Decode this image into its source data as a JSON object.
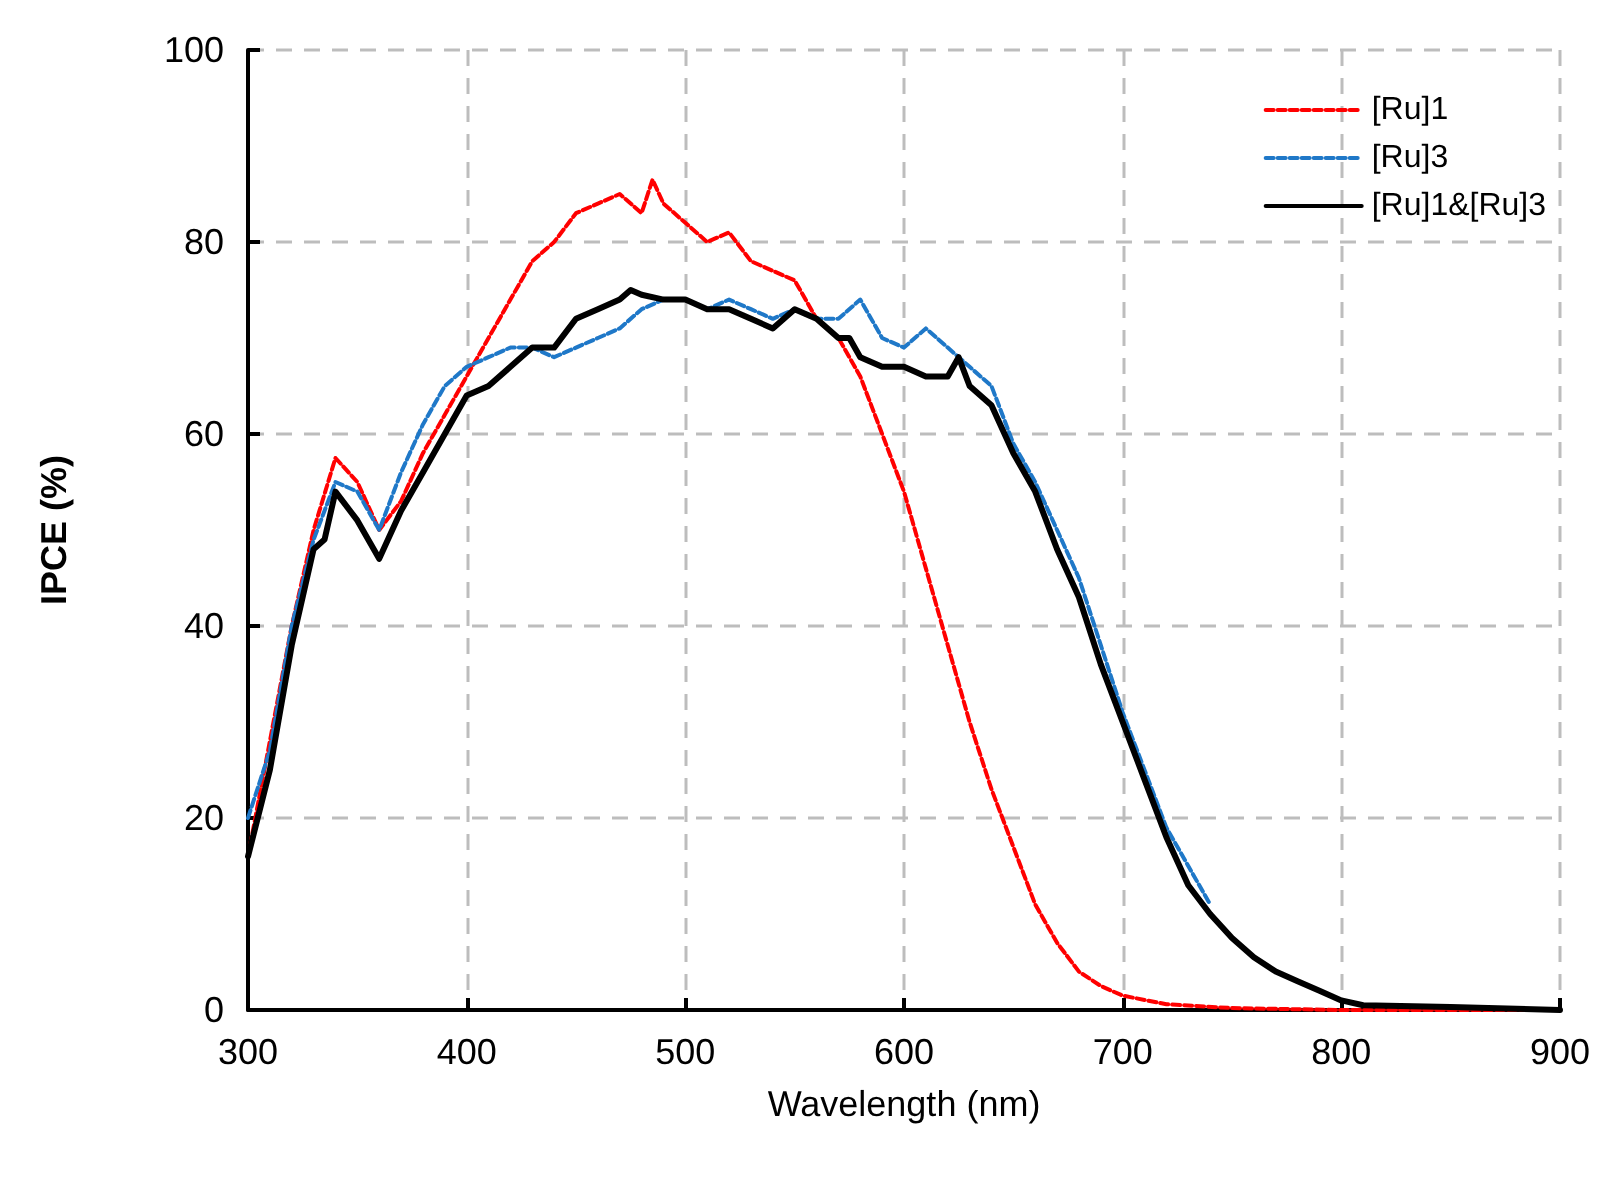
{
  "chart_data": {
    "type": "line",
    "xlabel": "Wavelength (nm)",
    "ylabel": "IPCE (%)",
    "xlim": [
      300,
      900
    ],
    "xticks": [
      300,
      400,
      500,
      600,
      700,
      800,
      900
    ],
    "ylim": [
      0,
      100
    ],
    "yticks": [
      0,
      20,
      40,
      60,
      80,
      100
    ],
    "grid": true,
    "legend": "top right",
    "marker": "none",
    "series": [
      {
        "name": "[Ru]1",
        "color": "#ff0000",
        "line_style": "dashed",
        "x": [
          300,
          310,
          320,
          330,
          340,
          350,
          360,
          370,
          380,
          390,
          400,
          410,
          420,
          430,
          440,
          450,
          460,
          470,
          475,
          480,
          485,
          490,
          500,
          510,
          520,
          530,
          540,
          550,
          560,
          570,
          580,
          590,
          600,
          610,
          620,
          630,
          640,
          650,
          660,
          670,
          680,
          690,
          700,
          720,
          750,
          800,
          900
        ],
        "values": [
          16,
          28,
          40,
          50,
          57.5,
          55,
          50,
          53,
          58,
          62,
          66,
          70,
          74,
          78,
          80,
          83,
          84,
          85,
          84,
          83,
          86.5,
          84,
          82,
          80,
          81,
          78,
          77,
          76,
          72,
          70,
          66,
          60,
          54,
          46,
          38,
          30,
          23,
          17,
          11,
          7,
          4,
          2.5,
          1.5,
          0.6,
          0.2,
          0,
          0
        ]
      },
      {
        "name": "[Ru]3",
        "color": "#1f78c8",
        "line_style": "dashed",
        "x": [
          300,
          310,
          320,
          330,
          340,
          350,
          360,
          370,
          380,
          390,
          400,
          410,
          420,
          430,
          440,
          450,
          460,
          470,
          480,
          490,
          500,
          510,
          520,
          530,
          540,
          550,
          560,
          570,
          580,
          590,
          600,
          610,
          620,
          630,
          640,
          650,
          660,
          670,
          680,
          690,
          700,
          710,
          720,
          730,
          740
        ],
        "values": [
          20,
          27,
          40,
          49,
          55,
          54,
          50,
          56,
          61,
          65,
          67,
          68,
          69,
          69,
          68,
          69,
          70,
          71,
          73,
          74,
          74,
          73,
          74,
          73,
          72,
          73,
          72,
          72,
          74,
          70,
          69,
          71,
          69,
          67,
          65,
          59,
          55,
          50,
          45,
          38,
          31,
          25,
          19,
          15,
          11
        ]
      },
      {
        "name": "[Ru]1&[Ru]3",
        "color": "#000000",
        "line_style": "solid",
        "x": [
          300,
          310,
          320,
          330,
          335,
          340,
          350,
          360,
          370,
          380,
          390,
          400,
          410,
          420,
          430,
          440,
          450,
          460,
          470,
          475,
          480,
          490,
          500,
          510,
          520,
          530,
          540,
          550,
          560,
          570,
          575,
          580,
          590,
          600,
          610,
          620,
          625,
          630,
          640,
          650,
          660,
          670,
          680,
          690,
          700,
          710,
          720,
          730,
          740,
          750,
          760,
          770,
          780,
          790,
          800,
          810,
          850,
          900
        ],
        "values": [
          16,
          25,
          38,
          48,
          49,
          54,
          51,
          47,
          52,
          56,
          60,
          64,
          65,
          67,
          69,
          69,
          72,
          73,
          74,
          75,
          74.5,
          74,
          74,
          73,
          73,
          72,
          71,
          73,
          72,
          70,
          70,
          68,
          67,
          67,
          66,
          66,
          68,
          65,
          63,
          58,
          54,
          48,
          43,
          36,
          30,
          24,
          18,
          13,
          10,
          7.5,
          5.5,
          4,
          3,
          2,
          1,
          0.5,
          0.3,
          0
        ]
      }
    ]
  }
}
